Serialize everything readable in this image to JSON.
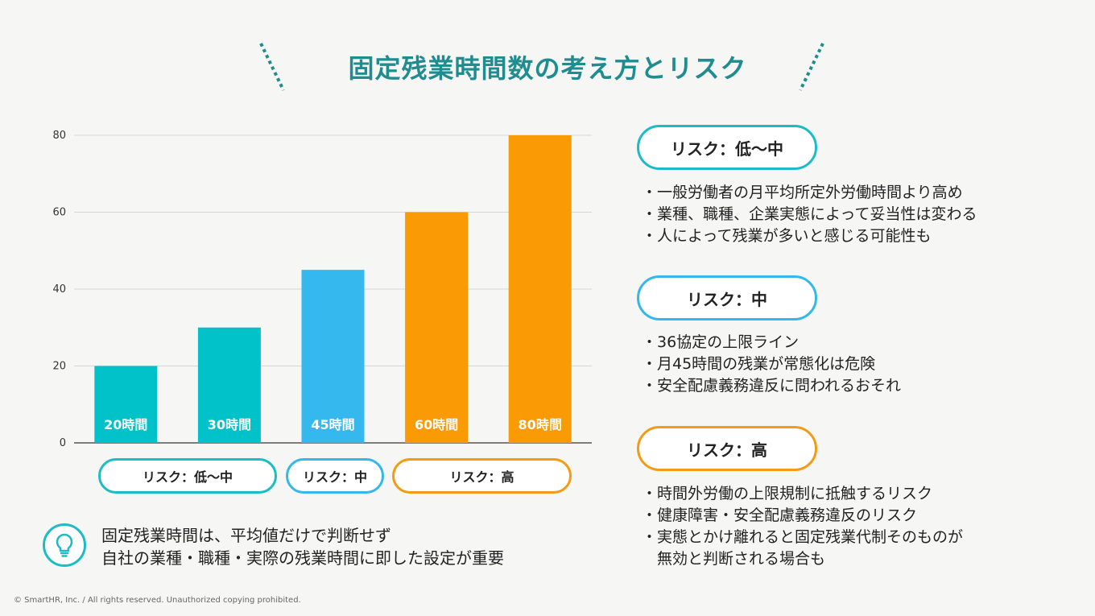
{
  "title": "固定残業時間数の考え方とリスク",
  "chart_data": {
    "type": "bar",
    "categories": [
      "20時間",
      "30時間",
      "45時間",
      "60時間",
      "80時間"
    ],
    "values": [
      20,
      30,
      45,
      60,
      80
    ],
    "data_labels": [
      "20時間",
      "30時間",
      "45時間",
      "60時間",
      "80時間"
    ],
    "bar_colors": [
      "#00c2c8",
      "#00c2c8",
      "#35b8ee",
      "#fa9a05",
      "#fa9a05"
    ],
    "ylim": [
      0,
      80
    ],
    "yticks": [
      0,
      20,
      40,
      60,
      80
    ],
    "grid": true,
    "title": "",
    "xlabel": "",
    "ylabel": ""
  },
  "risk_groups": [
    {
      "label": "リスク：低〜中",
      "color": "#1bbcc6"
    },
    {
      "label": "リスク：中",
      "color": "#36b7ea"
    },
    {
      "label": "リスク：高",
      "color": "#f49a16"
    }
  ],
  "sections": [
    {
      "label": "リスク：低〜中",
      "color": "#1bbcc6",
      "bullets": [
        "・一般労働者の月平均所定外労働時間より高め",
        "・業種、職種、企業実態によって妥当性は変わる",
        "・人によって残業が多いと感じる可能性も"
      ]
    },
    {
      "label": "リスク：中",
      "color": "#36b7ea",
      "bullets": [
        "・36協定の上限ライン",
        "・月45時間の残業が常態化は危険",
        "・安全配慮義務違反に問われるおそれ"
      ]
    },
    {
      "label": "リスク：高",
      "color": "#f49a16",
      "bullets": [
        "・時間外労働の上限規制に抵触するリスク",
        "・健康障害・安全配慮義務違反のリスク",
        "・実態とかけ離れると固定残業代制そのものが",
        "　無効と判断される場合も"
      ]
    }
  ],
  "note": {
    "line1": "固定残業時間は、平均値だけで判断せず",
    "line2": "自社の業種・職種・実際の残業時間に即した設定が重要",
    "icon": "lightbulb-icon"
  },
  "footer": "© SmartHR, Inc. / All rights reserved. Unauthorized copying prohibited."
}
